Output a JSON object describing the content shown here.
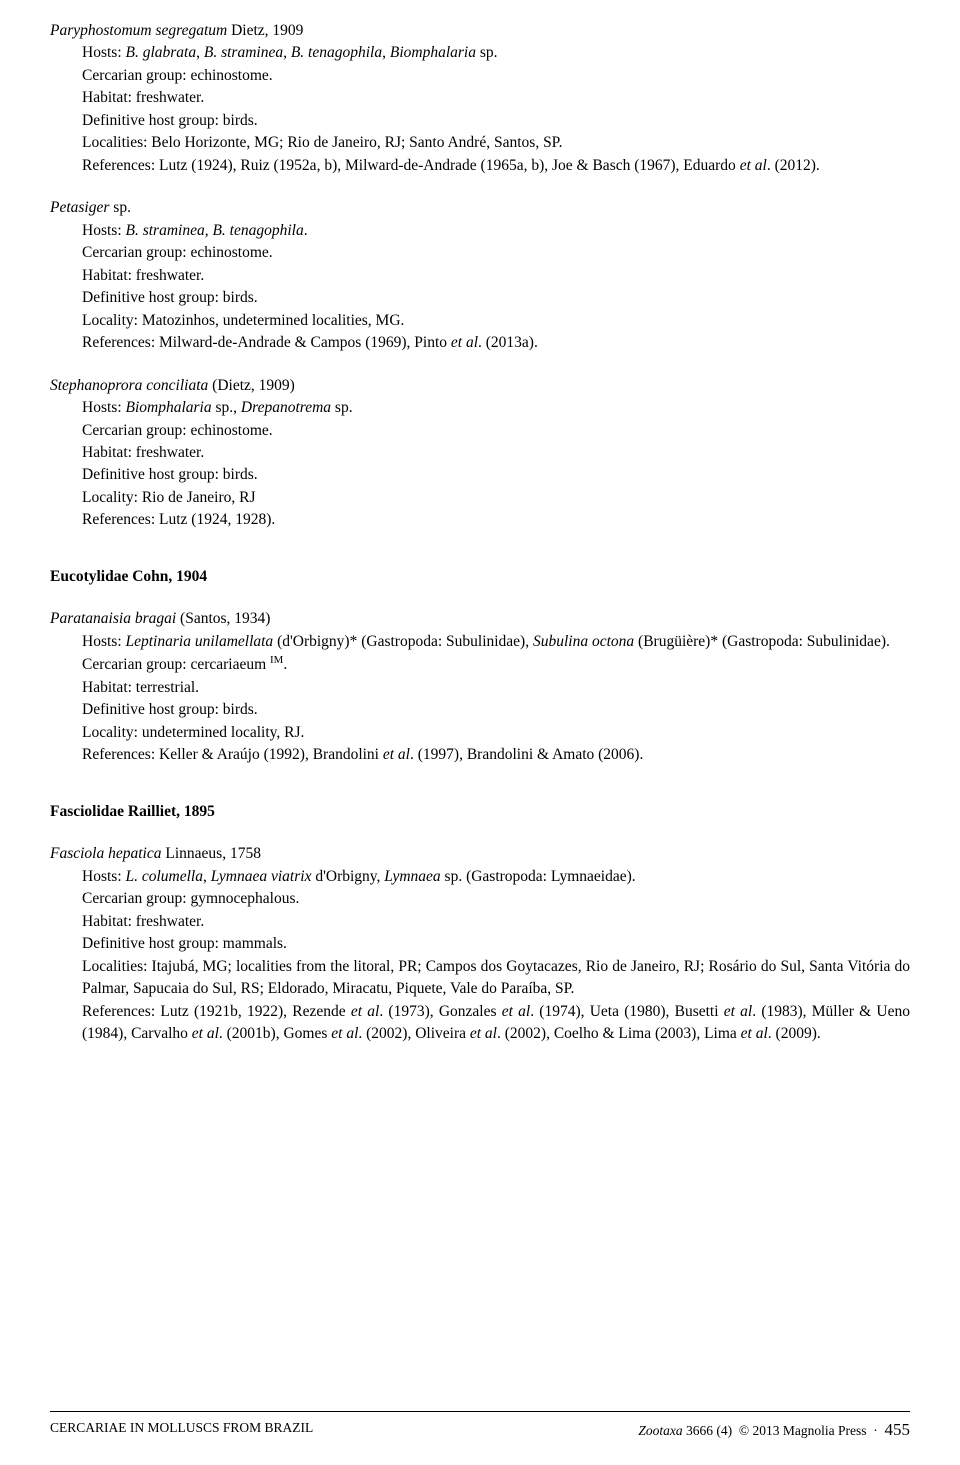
{
  "entries": [
    {
      "title_html": "<span class='italic'>Paryphostomum segregatum</span> Dietz, 1909",
      "lines": [
        "Hosts: <span class='italic'>B. glabrata</span>, <span class='italic'>B. straminea</span>, <span class='italic'>B. tenagophila</span>, <span class='italic'>Biomphalaria</span> sp.",
        "Cercarian group: echinostome.",
        "Habitat: freshwater.",
        "Definitive host group: birds.",
        "Localities: Belo Horizonte, MG; Rio de Janeiro, RJ; Santo André, Santos, SP.",
        "References: Lutz (1924), Ruiz (1952a, b), Milward-de-Andrade (1965a, b), Joe & Basch (1967), Eduardo <span class='italic'>et al</span>. (2012)."
      ]
    },
    {
      "title_html": "<span class='italic'>Petasiger</span> sp.",
      "lines": [
        "Hosts: <span class='italic'>B. straminea</span>, <span class='italic'>B. tenagophila</span>.",
        "Cercarian group: echinostome.",
        "Habitat: freshwater.",
        "Definitive host group: birds.",
        "Locality: Matozinhos, undetermined localities, MG.",
        "References: Milward-de-Andrade & Campos (1969), Pinto <span class='italic'>et al</span>. (2013a)."
      ]
    },
    {
      "title_html": "<span class='italic'>Stephanoprora conciliata</span> (Dietz, 1909)",
      "lines": [
        "Hosts: <span class='italic'>Biomphalaria</span> sp., <span class='italic'>Drepanotrema</span> sp.",
        "Cercarian group: echinostome.",
        "Habitat: freshwater.",
        "Definitive host group: birds.",
        "Locality: Rio de Janeiro, RJ",
        "References: Lutz (1924, 1928)."
      ]
    }
  ],
  "heading1": "Eucotylidae Cohn, 1904",
  "entry4": {
    "title_html": "<span class='italic'>Paratanaisia bragai</span> (Santos, 1934)",
    "lines": [
      "Hosts: <span class='italic'>Leptinaria unilamellata</span> (d'Orbigny)* (Gastropoda: Subulinidae), <span class='italic'>Subulina octona</span> (Brugüière)* (Gastropoda: Subulinidae).",
      "Cercarian group: cercariaeum <sup>IM</sup>.",
      "Habitat: terrestrial.",
      "Definitive host group: birds.",
      "Locality: undetermined locality, RJ.",
      "References: Keller & Araújo (1992), Brandolini <span class='italic'>et al</span>. (1997), Brandolini & Amato (2006)."
    ]
  },
  "heading2": "Fasciolidae Railliet, 1895",
  "entry5": {
    "title_html": "<span class='italic'>Fasciola hepatica</span> Linnaeus, 1758",
    "lines": [
      "Hosts: <span class='italic'>L. columella</span>, <span class='italic'>Lymnaea viatrix</span> d'Orbigny, <span class='italic'>Lymnaea</span> sp. (Gastropoda: Lymnaeidae).",
      "Cercarian group: gymnocephalous.",
      "Habitat: freshwater.",
      "Definitive host group: mammals.",
      "Localities: Itajubá, MG; localities from the litoral, PR; Campos dos Goytacazes, Rio de Janeiro, RJ; Rosário do Sul, Santa Vitória do Palmar, Sapucaia do Sul, RS; Eldorado, Miracatu, Piquete, Vale do Paraíba, SP.",
      "References: Lutz (1921b, 1922), Rezende <span class='italic'>et al</span>. (1973), Gonzales <span class='italic'>et al</span>. (1974), Ueta (1980), Busetti <span class='italic'>et al</span>. (1983), Müller & Ueno (1984), Carvalho <span class='italic'>et al</span>. (2001b), Gomes <span class='italic'>et al</span>. (2002), Oliveira <span class='italic'>et al</span>. (2002), Coelho & Lima (2003), Lima <span class='italic'>et al</span>. (2009)."
    ]
  },
  "footer": {
    "left": "CERCARIAE IN MOLLUSCS FROM BRAZIL",
    "journal": "Zootaxa",
    "issue": "3666 (4)",
    "copyright": "© 2013 Magnolia Press",
    "sep": "·",
    "page": "455"
  }
}
